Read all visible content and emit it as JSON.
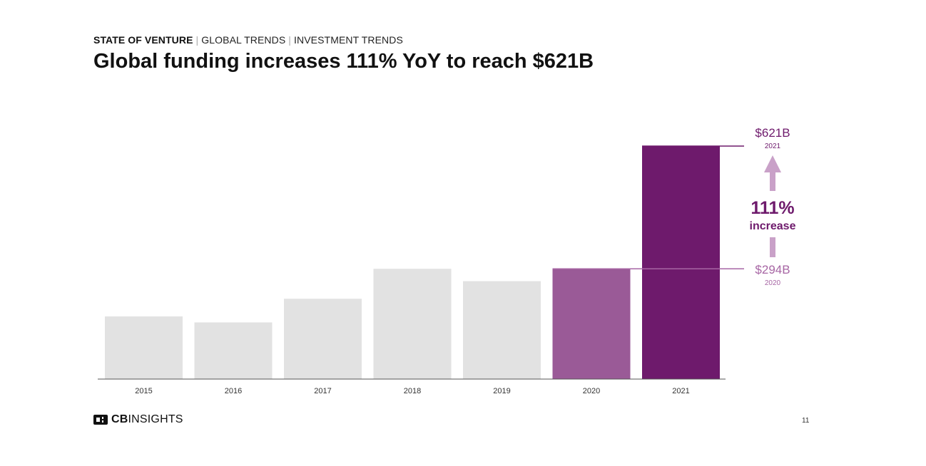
{
  "header": {
    "section": "STATE OF VENTURE",
    "crumb_1": "GLOBAL TRENDS",
    "crumb_2": "INVESTMENT TRENDS",
    "separator": "|",
    "title": "Global funding increases 111% YoY to reach $621B"
  },
  "chart_data": {
    "type": "bar",
    "categories": [
      "2015",
      "2016",
      "2017",
      "2018",
      "2019",
      "2020",
      "2021"
    ],
    "values": [
      167,
      151,
      214,
      294,
      261,
      294,
      621
    ],
    "unit": "$B",
    "ylim": [
      0,
      621
    ],
    "grid": false,
    "colors": [
      "#e2e2e2",
      "#e2e2e2",
      "#e2e2e2",
      "#e2e2e2",
      "#e2e2e2",
      "#9a5a97",
      "#6e1a6c"
    ],
    "annotations": {
      "top_value": "$621B",
      "top_year": "2021",
      "bottom_value": "$294B",
      "bottom_year": "2020",
      "change_value": "111%",
      "change_label": "increase",
      "arrow_color": "#c9a1c8",
      "light_accent": "#a766a4",
      "dark_accent": "#6e1a6c"
    }
  },
  "footer": {
    "logo_bold": "CB",
    "logo_text": "INSIGHTS",
    "logo_icon": "cb-insights-logo-icon",
    "page_number": "11"
  }
}
